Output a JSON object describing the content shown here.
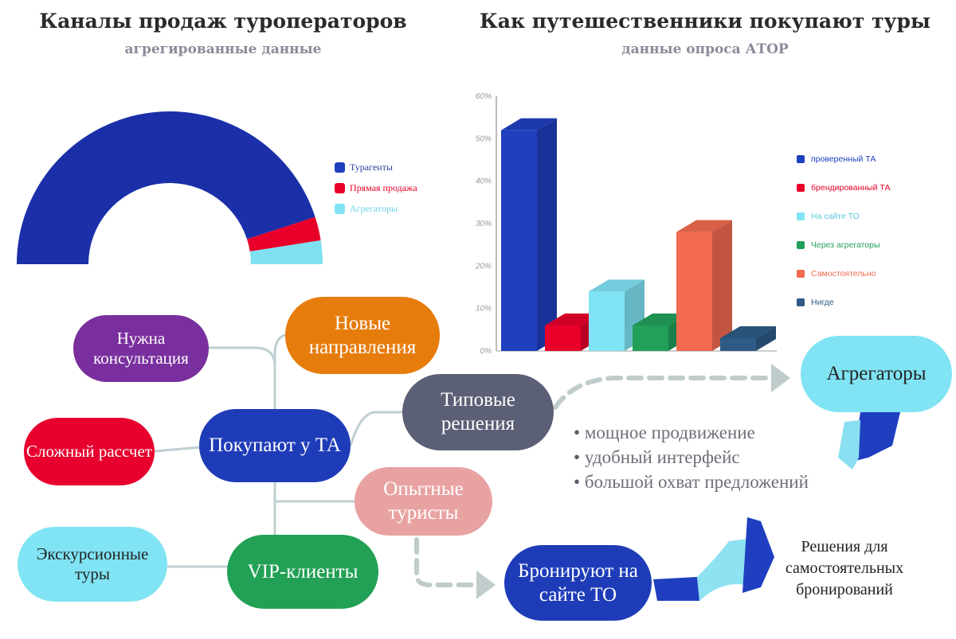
{
  "left_title": "Каналы продаж туроператоров",
  "left_subtitle": "агрегированные данные",
  "right_title": "Как путешественники покупают туры",
  "right_subtitle": "данные опроса АТОР",
  "chart_data": [
    {
      "type": "pie",
      "variant": "semi-donut",
      "title": "Каналы продаж туроператоров",
      "subtitle": "агрегированные данные",
      "categories": [
        "Турагенты",
        "Прямая продажа",
        "Агрегаторы"
      ],
      "values": [
        90,
        5,
        5
      ],
      "colors": [
        "#1a2fa8",
        "#e8002a",
        "#7fe0f0"
      ],
      "legend": "right"
    },
    {
      "type": "bar",
      "variant": "3d",
      "title": "Как путешественники покупают туры",
      "subtitle": "данные опроса АТОР",
      "categories": [
        "проверенный ТА",
        "брендированный ТА",
        "На сайте ТО",
        "Через агрегаторы",
        "Самостоятельно",
        "Нигде"
      ],
      "values": [
        52,
        6,
        14,
        6,
        28,
        3
      ],
      "colors": [
        "#1f3fbf",
        "#e8002a",
        "#80e4f4",
        "#22a05a",
        "#f26a4f",
        "#2e5b86"
      ],
      "yticks": [
        "0%",
        "10%",
        "20%",
        "30%",
        "40%",
        "50%",
        "60%"
      ],
      "ylim": [
        0,
        60
      ],
      "legend": "right",
      "grid": false
    }
  ],
  "mindmap": {
    "center": "Покупают у ТА",
    "consult": "Нужна консультация",
    "new_dest": "Новые направления",
    "complex": "Сложный рассчет",
    "typical": "Типовые решения",
    "experienced": "Опытные туристы",
    "excursion": "Экскурсионные туры",
    "vip": "VIP-клиенты",
    "aggregators": "Агрегаторы",
    "book_to": "Бронируют на сайте ТО",
    "bullets": [
      "мощное продвижение",
      "удобный интерфейс",
      "большой охват предложений"
    ],
    "note": "Решения для самостоятельных бронирований"
  }
}
